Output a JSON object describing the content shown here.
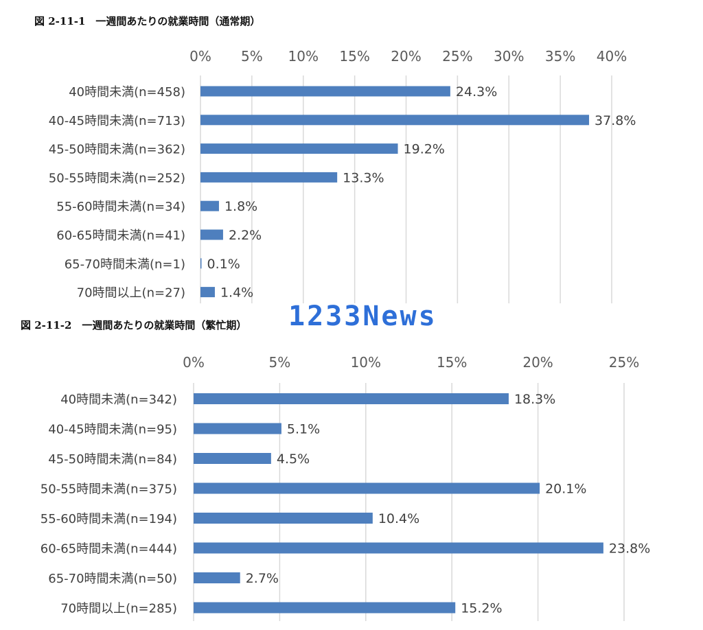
{
  "watermark": "1233News",
  "chart_data": [
    {
      "type": "bar",
      "orientation": "horizontal",
      "title": "図 2-11-1　一週間あたりの就業時間（通常期）",
      "xlim": [
        0,
        40
      ],
      "ticks": [
        0,
        5,
        10,
        15,
        20,
        25,
        30,
        35,
        40
      ],
      "tick_labels": [
        "0%",
        "5%",
        "10%",
        "15%",
        "20%",
        "25%",
        "30%",
        "35%",
        "40%"
      ],
      "categories": [
        "40時間未満(n=458)",
        "40-45時間未満(n=713)",
        "45-50時間未満(n=362)",
        "50-55時間未満(n=252)",
        "55-60時間未満(n=34)",
        "60-65時間未満(n=41)",
        "65-70時間未満(n=1)",
        "70時間以上(n=27)"
      ],
      "values": [
        24.3,
        37.8,
        19.2,
        13.3,
        1.8,
        2.2,
        0.1,
        1.4
      ],
      "data_labels": [
        "24.3%",
        "37.8%",
        "19.2%",
        "13.3%",
        "1.8%",
        "2.2%",
        "0.1%",
        "1.4%"
      ],
      "grid": true,
      "color": "#4e7fbe"
    },
    {
      "type": "bar",
      "orientation": "horizontal",
      "title": "図 2-11-2　一週間あたりの就業時間（繁忙期）",
      "xlim": [
        0,
        25
      ],
      "ticks": [
        0,
        5,
        10,
        15,
        20,
        25
      ],
      "tick_labels": [
        "0%",
        "5%",
        "10%",
        "15%",
        "20%",
        "25%"
      ],
      "categories": [
        "40時間未満(n=342)",
        "40-45時間未満(n=95)",
        "45-50時間未満(n=84)",
        "50-55時間未満(n=375)",
        "55-60時間未満(n=194)",
        "60-65時間未満(n=444)",
        "65-70時間未満(n=50)",
        "70時間以上(n=285)"
      ],
      "values": [
        18.3,
        5.1,
        4.5,
        20.1,
        10.4,
        23.8,
        2.7,
        15.2
      ],
      "data_labels": [
        "18.3%",
        "5.1%",
        "4.5%",
        "20.1%",
        "10.4%",
        "23.8%",
        "2.7%",
        "15.2%"
      ],
      "grid": true,
      "color": "#4e7fbe"
    }
  ]
}
